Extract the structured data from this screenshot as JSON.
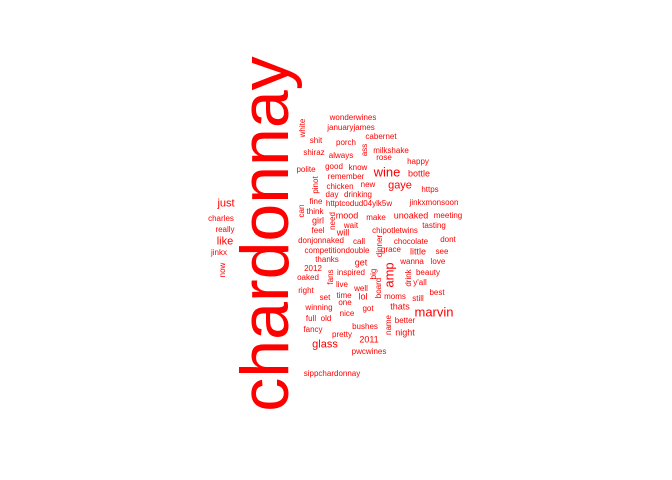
{
  "color": "#ff0000",
  "words": [
    {
      "text": "chardonnay",
      "orientation": "vertical"
    },
    {
      "text": "wonderwines",
      "orientation": "horizontal"
    },
    {
      "text": "januaryjames",
      "orientation": "horizontal"
    },
    {
      "text": "white",
      "orientation": "vertical"
    },
    {
      "text": "cabernet",
      "orientation": "horizontal"
    },
    {
      "text": "shit",
      "orientation": "horizontal"
    },
    {
      "text": "porch",
      "orientation": "horizontal"
    },
    {
      "text": "milkshake",
      "orientation": "horizontal"
    },
    {
      "text": "ass",
      "orientation": "vertical"
    },
    {
      "text": "shiraz",
      "orientation": "horizontal"
    },
    {
      "text": "always",
      "orientation": "horizontal"
    },
    {
      "text": "rose",
      "orientation": "horizontal"
    },
    {
      "text": "happy",
      "orientation": "horizontal"
    },
    {
      "text": "good",
      "orientation": "horizontal"
    },
    {
      "text": "know",
      "orientation": "horizontal"
    },
    {
      "text": "polite",
      "orientation": "horizontal"
    },
    {
      "text": "wine",
      "orientation": "horizontal"
    },
    {
      "text": "bottle",
      "orientation": "horizontal"
    },
    {
      "text": "remember",
      "orientation": "horizontal"
    },
    {
      "text": "pinot",
      "orientation": "vertical"
    },
    {
      "text": "chicken",
      "orientation": "horizontal"
    },
    {
      "text": "new",
      "orientation": "horizontal"
    },
    {
      "text": "gaye",
      "orientation": "horizontal"
    },
    {
      "text": "https",
      "orientation": "horizontal"
    },
    {
      "text": "day",
      "orientation": "horizontal"
    },
    {
      "text": "drinking",
      "orientation": "horizontal"
    },
    {
      "text": "just",
      "orientation": "horizontal"
    },
    {
      "text": "fine",
      "orientation": "horizontal"
    },
    {
      "text": "httptcodud04ylk5w",
      "orientation": "horizontal"
    },
    {
      "text": "jinkxmonsoon",
      "orientation": "horizontal"
    },
    {
      "text": "can",
      "orientation": "vertical"
    },
    {
      "text": "think",
      "orientation": "horizontal"
    },
    {
      "text": "mood",
      "orientation": "horizontal"
    },
    {
      "text": "make",
      "orientation": "horizontal"
    },
    {
      "text": "unoaked",
      "orientation": "horizontal"
    },
    {
      "text": "meeting",
      "orientation": "horizontal"
    },
    {
      "text": "charles",
      "orientation": "horizontal"
    },
    {
      "text": "girl",
      "orientation": "horizontal"
    },
    {
      "text": "need",
      "orientation": "vertical"
    },
    {
      "text": "wait",
      "orientation": "horizontal"
    },
    {
      "text": "tasting",
      "orientation": "horizontal"
    },
    {
      "text": "really",
      "orientation": "horizontal"
    },
    {
      "text": "feel",
      "orientation": "horizontal"
    },
    {
      "text": "will",
      "orientation": "horizontal"
    },
    {
      "text": "chipotletwins",
      "orientation": "horizontal"
    },
    {
      "text": "like",
      "orientation": "horizontal"
    },
    {
      "text": "donjonnaked",
      "orientation": "horizontal"
    },
    {
      "text": "call",
      "orientation": "horizontal"
    },
    {
      "text": "chocolate",
      "orientation": "horizontal"
    },
    {
      "text": "dont",
      "orientation": "horizontal"
    },
    {
      "text": "jinkx",
      "orientation": "horizontal"
    },
    {
      "text": "competitiondouble",
      "orientation": "horizontal"
    },
    {
      "text": "dinner",
      "orientation": "vertical"
    },
    {
      "text": "grace",
      "orientation": "horizontal"
    },
    {
      "text": "little",
      "orientation": "horizontal"
    },
    {
      "text": "see",
      "orientation": "horizontal"
    },
    {
      "text": "now",
      "orientation": "vertical"
    },
    {
      "text": "thanks",
      "orientation": "horizontal"
    },
    {
      "text": "get",
      "orientation": "horizontal"
    },
    {
      "text": "amp",
      "orientation": "vertical"
    },
    {
      "text": "wanna",
      "orientation": "horizontal"
    },
    {
      "text": "love",
      "orientation": "horizontal"
    },
    {
      "text": "2012",
      "orientation": "horizontal"
    },
    {
      "text": "fans",
      "orientation": "vertical"
    },
    {
      "text": "inspired",
      "orientation": "horizontal"
    },
    {
      "text": "big",
      "orientation": "vertical"
    },
    {
      "text": "drink",
      "orientation": "vertical"
    },
    {
      "text": "beauty",
      "orientation": "horizontal"
    },
    {
      "text": "oaked",
      "orientation": "horizontal"
    },
    {
      "text": "live",
      "orientation": "horizontal"
    },
    {
      "text": "well",
      "orientation": "horizontal"
    },
    {
      "text": "board",
      "orientation": "vertical"
    },
    {
      "text": "y'all",
      "orientation": "horizontal"
    },
    {
      "text": "right",
      "orientation": "horizontal"
    },
    {
      "text": "time",
      "orientation": "horizontal"
    },
    {
      "text": "lol",
      "orientation": "horizontal"
    },
    {
      "text": "moms",
      "orientation": "horizontal"
    },
    {
      "text": "marvin",
      "orientation": "horizontal"
    },
    {
      "text": "best",
      "orientation": "horizontal"
    },
    {
      "text": "set",
      "orientation": "horizontal"
    },
    {
      "text": "one",
      "orientation": "horizontal"
    },
    {
      "text": "still",
      "orientation": "horizontal"
    },
    {
      "text": "winning",
      "orientation": "horizontal"
    },
    {
      "text": "got",
      "orientation": "horizontal"
    },
    {
      "text": "thats",
      "orientation": "horizontal"
    },
    {
      "text": "full",
      "orientation": "horizontal"
    },
    {
      "text": "old",
      "orientation": "horizontal"
    },
    {
      "text": "nice",
      "orientation": "horizontal"
    },
    {
      "text": "name",
      "orientation": "vertical"
    },
    {
      "text": "better",
      "orientation": "horizontal"
    },
    {
      "text": "fancy",
      "orientation": "horizontal"
    },
    {
      "text": "bushes",
      "orientation": "horizontal"
    },
    {
      "text": "night",
      "orientation": "horizontal"
    },
    {
      "text": "pretty",
      "orientation": "horizontal"
    },
    {
      "text": "2011",
      "orientation": "horizontal"
    },
    {
      "text": "glass",
      "orientation": "horizontal"
    },
    {
      "text": "pwcwines",
      "orientation": "horizontal"
    },
    {
      "text": "sippchardonnay",
      "orientation": "horizontal"
    }
  ]
}
